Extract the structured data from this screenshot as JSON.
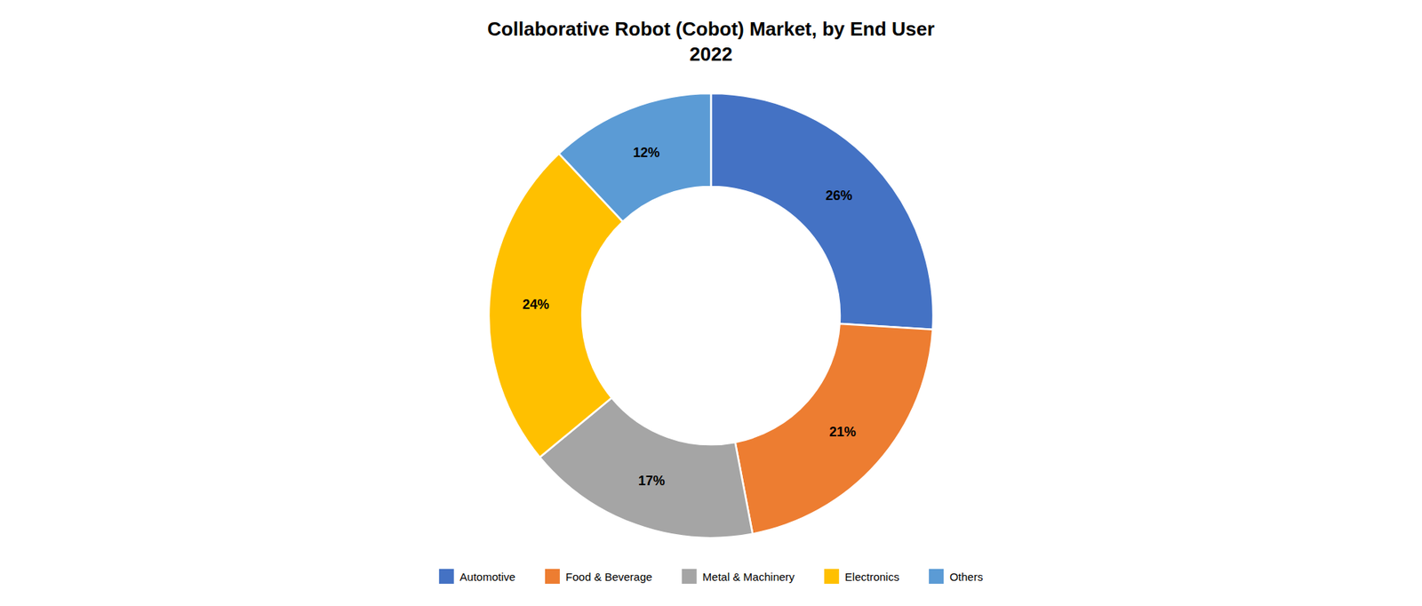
{
  "chart_data": {
    "type": "donut",
    "title": "Collaborative Robot (Cobot) Market, by End User\n2022",
    "categories": [
      "Automotive",
      "Food & Beverage",
      "Metal & Machinery",
      "Electronics",
      "Others"
    ],
    "values": [
      26,
      21,
      17,
      24,
      12
    ],
    "value_labels": [
      "26%",
      "21%",
      "17%",
      "24%",
      "12%"
    ],
    "colors": [
      "#4472C4",
      "#ED7D31",
      "#A5A5A5",
      "#FFC000",
      "#5B9BD5"
    ],
    "data_labels": true,
    "legend": "bottom"
  }
}
